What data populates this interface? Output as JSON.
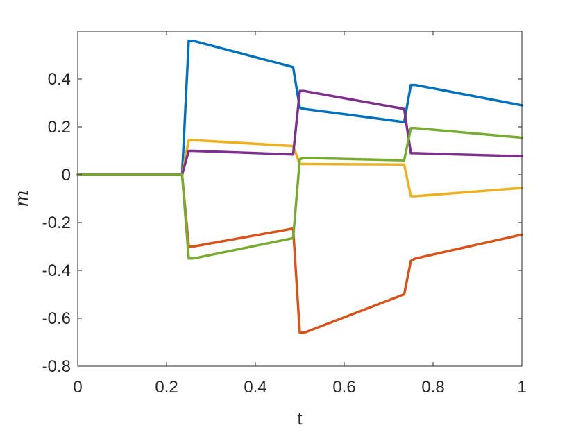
{
  "chart_data": {
    "type": "line",
    "xlabel": "t",
    "ylabel": "m",
    "xlim": [
      0,
      1
    ],
    "ylim": [
      -0.8,
      0.6
    ],
    "xticks": [
      0,
      0.2,
      0.4,
      0.6,
      0.8,
      1
    ],
    "xtick_labels": [
      "0",
      "0.2",
      "0.4",
      "0.6",
      "0.8",
      "1"
    ],
    "yticks": [
      -0.8,
      -0.6,
      -0.4,
      -0.2,
      0,
      0.2,
      0.4
    ],
    "ytick_labels": [
      "-0.8",
      "-0.6",
      "-0.4",
      "-0.2",
      "0",
      "0.2",
      "0.4"
    ],
    "grid": false,
    "box": true,
    "series": [
      {
        "color": "#0072BD",
        "x": [
          0,
          0.235,
          0.25,
          0.26,
          0.485,
          0.5,
          0.51,
          0.735,
          0.75,
          0.76,
          1.0
        ],
        "y": [
          0,
          0,
          0.56,
          0.56,
          0.45,
          0.28,
          0.275,
          0.22,
          0.375,
          0.375,
          0.29
        ]
      },
      {
        "color": "#D95319",
        "x": [
          0,
          0.235,
          0.25,
          0.26,
          0.485,
          0.5,
          0.51,
          0.735,
          0.75,
          0.76,
          1.0
        ],
        "y": [
          0,
          0,
          -0.3,
          -0.3,
          -0.225,
          -0.66,
          -0.66,
          -0.5,
          -0.36,
          -0.35,
          -0.25
        ]
      },
      {
        "color": "#EDB120",
        "x": [
          0,
          0.235,
          0.25,
          0.26,
          0.485,
          0.5,
          0.51,
          0.735,
          0.75,
          0.76,
          1.0
        ],
        "y": [
          0,
          0,
          0.145,
          0.145,
          0.12,
          0.045,
          0.045,
          0.043,
          -0.09,
          -0.09,
          -0.055
        ]
      },
      {
        "color": "#7E2F8E",
        "x": [
          0,
          0.235,
          0.25,
          0.26,
          0.485,
          0.5,
          0.51,
          0.735,
          0.75,
          0.76,
          1.0
        ],
        "y": [
          0,
          0,
          0.1,
          0.1,
          0.085,
          0.35,
          0.35,
          0.275,
          0.09,
          0.09,
          0.077
        ]
      },
      {
        "color": "#77AC30",
        "x": [
          0,
          0.235,
          0.25,
          0.26,
          0.485,
          0.5,
          0.51,
          0.735,
          0.75,
          0.76,
          1.0
        ],
        "y": [
          0,
          0,
          -0.35,
          -0.35,
          -0.265,
          0.065,
          0.07,
          0.06,
          0.195,
          0.195,
          0.155
        ]
      }
    ]
  }
}
